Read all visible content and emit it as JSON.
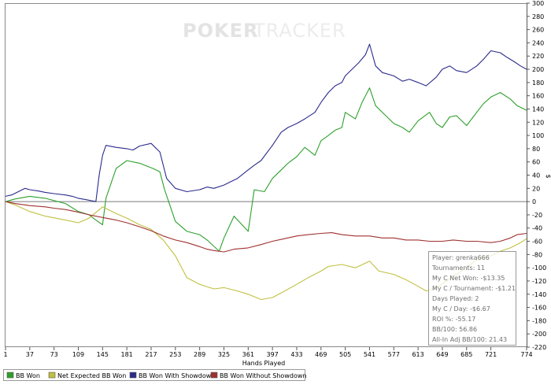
{
  "logo": {
    "part1": "POKER",
    "part2": "TRACKER"
  },
  "chart_data": {
    "type": "line",
    "xlabel": "Hands Played",
    "ylabel": "$",
    "xlim": [
      1,
      774
    ],
    "ylim": [
      -220,
      300
    ],
    "x_ticks": [
      1,
      37,
      73,
      109,
      145,
      181,
      217,
      253,
      289,
      325,
      361,
      397,
      433,
      469,
      505,
      541,
      577,
      613,
      649,
      685,
      721,
      774
    ],
    "y_ticks": [
      300,
      280,
      260,
      240,
      220,
      200,
      180,
      160,
      140,
      120,
      100,
      80,
      60,
      40,
      20,
      0,
      -20,
      -40,
      -60,
      -80,
      -100,
      -120,
      -140,
      -160,
      -180,
      -200,
      -220
    ],
    "grid": false,
    "legend_position": "bottom",
    "series": [
      {
        "name": "BB Won",
        "color": "#2ca02c",
        "x": [
          1,
          15,
          37,
          60,
          90,
          109,
          125,
          135,
          145,
          150,
          165,
          181,
          200,
          220,
          230,
          237,
          253,
          270,
          289,
          300,
          318,
          325,
          340,
          361,
          370,
          385,
          397,
          410,
          420,
          433,
          445,
          460,
          469,
          480,
          490,
          500,
          505,
          520,
          530,
          541,
          550,
          565,
          577,
          590,
          600,
          613,
          630,
          640,
          649,
          660,
          670,
          685,
          700,
          710,
          721,
          735,
          750,
          760,
          774
        ],
        "y": [
          0,
          4,
          8,
          5,
          -3,
          -15,
          -20,
          -28,
          -35,
          5,
          50,
          62,
          58,
          50,
          45,
          18,
          -30,
          -45,
          -50,
          -58,
          -75,
          -55,
          -22,
          -45,
          18,
          15,
          35,
          48,
          58,
          68,
          82,
          70,
          92,
          100,
          108,
          112,
          135,
          125,
          150,
          172,
          145,
          130,
          118,
          112,
          105,
          122,
          135,
          118,
          112,
          128,
          130,
          115,
          135,
          148,
          158,
          165,
          155,
          145,
          138
        ]
      },
      {
        "name": "Net Expected BB Won",
        "color": "#c0c040",
        "x": [
          1,
          15,
          37,
          60,
          90,
          109,
          125,
          145,
          165,
          181,
          200,
          217,
          235,
          253,
          270,
          289,
          310,
          325,
          345,
          361,
          380,
          397,
          410,
          433,
          450,
          469,
          480,
          500,
          520,
          541,
          555,
          577,
          595,
          613,
          625,
          640,
          655,
          670,
          685,
          700,
          721,
          735,
          750,
          765,
          774
        ],
        "y": [
          0,
          -5,
          -15,
          -22,
          -28,
          -32,
          -25,
          -8,
          -18,
          -25,
          -35,
          -42,
          -58,
          -82,
          -115,
          -125,
          -132,
          -130,
          -135,
          -140,
          -148,
          -145,
          -138,
          -125,
          -115,
          -105,
          -98,
          -95,
          -100,
          -90,
          -105,
          -110,
          -118,
          -128,
          -135,
          -130,
          -120,
          -110,
          -100,
          -88,
          -82,
          -75,
          -70,
          -62,
          -56
        ]
      },
      {
        "name": "BB Won With Showdown",
        "color": "#2b2b8c",
        "x": [
          1,
          10,
          20,
          30,
          37,
          50,
          60,
          73,
          90,
          100,
          109,
          120,
          135,
          140,
          145,
          150,
          165,
          181,
          190,
          200,
          217,
          230,
          240,
          253,
          270,
          289,
          300,
          310,
          325,
          335,
          345,
          361,
          370,
          380,
          397,
          410,
          420,
          433,
          445,
          460,
          469,
          480,
          490,
          500,
          505,
          515,
          525,
          535,
          541,
          550,
          560,
          577,
          590,
          600,
          613,
          625,
          640,
          649,
          660,
          670,
          685,
          700,
          710,
          721,
          735,
          745,
          755,
          765,
          774
        ],
        "y": [
          8,
          10,
          15,
          20,
          18,
          16,
          14,
          12,
          10,
          8,
          5,
          3,
          0,
          40,
          70,
          85,
          82,
          80,
          78,
          84,
          88,
          75,
          35,
          20,
          15,
          18,
          22,
          20,
          25,
          30,
          35,
          48,
          55,
          62,
          85,
          105,
          112,
          118,
          125,
          135,
          150,
          165,
          175,
          180,
          190,
          200,
          210,
          222,
          238,
          205,
          195,
          190,
          182,
          185,
          180,
          175,
          188,
          200,
          205,
          198,
          195,
          205,
          215,
          228,
          225,
          218,
          212,
          205,
          200
        ]
      },
      {
        "name": "BB Won Without Showdown",
        "color": "#a03030",
        "x": [
          1,
          15,
          37,
          60,
          73,
          90,
          109,
          125,
          145,
          165,
          181,
          200,
          217,
          235,
          253,
          270,
          289,
          300,
          310,
          325,
          340,
          361,
          380,
          397,
          415,
          433,
          450,
          469,
          485,
          500,
          520,
          541,
          560,
          577,
          595,
          613,
          630,
          649,
          665,
          685,
          700,
          721,
          735,
          750,
          760,
          774
        ],
        "y": [
          0,
          -3,
          -6,
          -8,
          -10,
          -12,
          -16,
          -20,
          -24,
          -28,
          -32,
          -38,
          -44,
          -52,
          -58,
          -62,
          -68,
          -72,
          -74,
          -76,
          -72,
          -70,
          -65,
          -60,
          -56,
          -52,
          -50,
          -48,
          -47,
          -50,
          -52,
          -52,
          -55,
          -55,
          -58,
          -58,
          -60,
          -60,
          -58,
          -60,
          -60,
          -62,
          -60,
          -55,
          -50,
          -48
        ]
      }
    ]
  },
  "stats": [
    "Player: grenka666",
    "Tournaments: 11",
    "My C Net Won: -$13.35",
    "My C / Tournament: -$1.21",
    "Days Played: 2",
    "My C / Day: -$6.67",
    "ROI %: -55.17",
    "BB/100: 56.86",
    "All-In Adj BB/100: 21.43"
  ]
}
